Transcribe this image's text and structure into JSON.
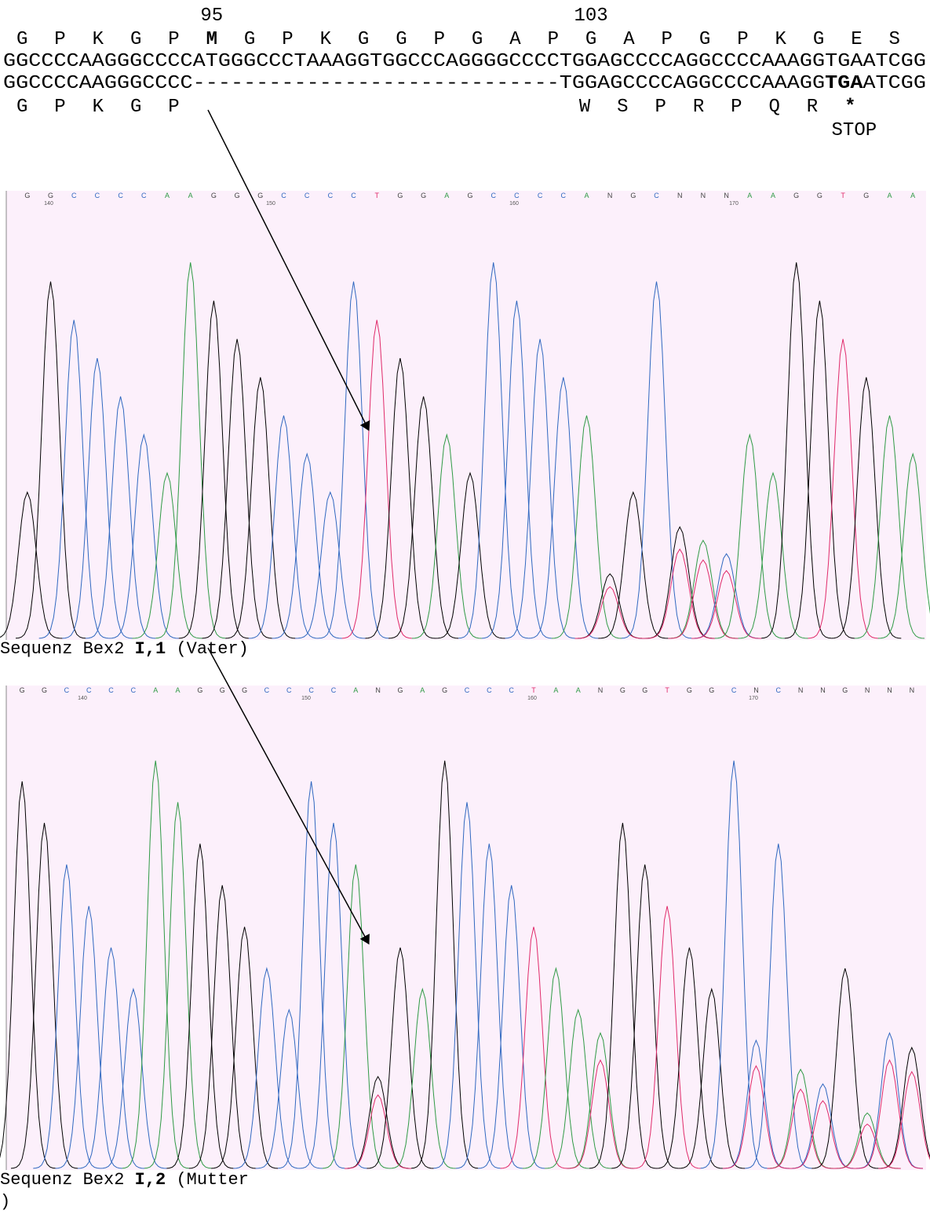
{
  "alignment": {
    "position_labels": [
      "95",
      "103"
    ],
    "reference_protein": [
      "G",
      "P",
      "K",
      "G",
      "P",
      "M",
      "G",
      "P",
      "K",
      "G",
      "G",
      "P",
      "G",
      "A",
      "P",
      "G",
      "A",
      "P",
      "G",
      "P",
      "K",
      "G",
      "E",
      "S"
    ],
    "reference_dna": "GGCCCCAAGGGCCCCATGGGCCCTAAAGGTGGCCCAGGGGCCCCTGGAGCCCCAGGCCCCAAAGGTGAATCGG",
    "mutant_dna": [
      "GGCCCCAAGGGCCCC",
      "-----------------------------",
      "TGGAGCCCCAGGCCCCAAAGG",
      "TGA",
      "ATCGG"
    ],
    "mutant_protein": [
      "G",
      "P",
      "K",
      "G",
      "P",
      "W",
      "S",
      "P",
      "R",
      "P",
      "Q",
      "R",
      "*"
    ],
    "stop_label": "STOP"
  },
  "traces": [
    {
      "bases": [
        "G",
        "G",
        "C",
        "C",
        "C",
        "C",
        "A",
        "A",
        "G",
        "G",
        "G",
        "C",
        "C",
        "C",
        "C",
        "T",
        "G",
        "G",
        "A",
        "G",
        "C",
        "C",
        "C",
        "C",
        "A",
        "N",
        "G",
        "C",
        "N",
        "N",
        "N",
        "A",
        "A",
        "G",
        "G",
        "T",
        "G",
        "A",
        "A"
      ],
      "positions": [
        "140",
        "150",
        "160",
        "170"
      ],
      "caption": {
        "prefix": "Sequenz Bex2 ",
        "sample": "I,1",
        "suffix": " (Vater)"
      }
    },
    {
      "bases": [
        "G",
        "G",
        "C",
        "C",
        "C",
        "C",
        "A",
        "A",
        "G",
        "G",
        "G",
        "C",
        "C",
        "C",
        "C",
        "A",
        "N",
        "G",
        "A",
        "G",
        "C",
        "C",
        "C",
        "T",
        "A",
        "A",
        "N",
        "G",
        "G",
        "T",
        "G",
        "G",
        "C",
        "N",
        "C",
        "N",
        "N",
        "G",
        "N",
        "N",
        "N"
      ],
      "positions": [
        "140",
        "150",
        "160",
        "170"
      ],
      "caption": {
        "prefix": "Sequenz Bex2 ",
        "sample": "I,2",
        "suffix": " (Mutter",
        "suffix_line2": ")"
      }
    }
  ]
}
